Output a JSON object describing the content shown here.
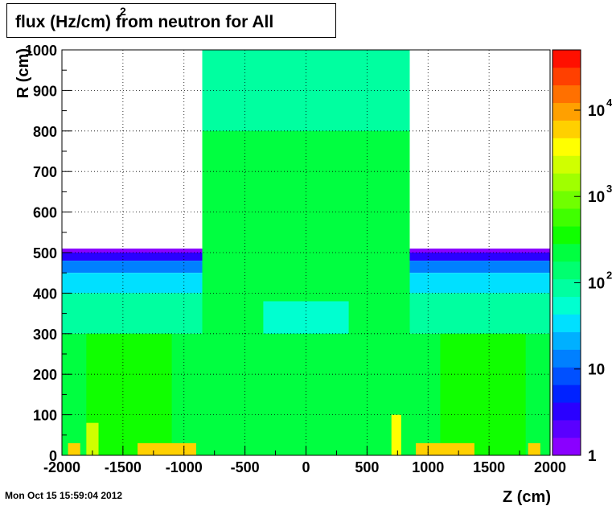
{
  "chart_data": {
    "type": "heatmap",
    "title": "flux (Hz/cm",
    "title_superscript": "2",
    "title_suffix": ") from neutron  for All",
    "xlabel": "Z (cm)",
    "ylabel": "R (cm)",
    "xlim": [
      -2000,
      2000
    ],
    "ylim": [
      0,
      1000
    ],
    "x_ticks": [
      -2000,
      -1500,
      -1000,
      -500,
      0,
      500,
      1000,
      1500,
      2000
    ],
    "x_tick_labels": [
      "-2000",
      "-1500",
      "-1000",
      "-500",
      "0",
      "500",
      "1000",
      "1500",
      "2000"
    ],
    "y_ticks": [
      0,
      100,
      200,
      300,
      400,
      500,
      600,
      700,
      800,
      900,
      1000
    ],
    "y_tick_labels": [
      "0",
      "100",
      "200",
      "300",
      "400",
      "500",
      "600",
      "700",
      "800",
      "900",
      "1000"
    ],
    "grid": true,
    "z_scale": "log",
    "zlim": [
      1,
      50000
    ],
    "colorbar": {
      "labels": [
        {
          "value": 1,
          "base": "1",
          "exp": ""
        },
        {
          "value": 10,
          "base": "10",
          "exp": ""
        },
        {
          "value": 100,
          "base": "10",
          "exp": "2"
        },
        {
          "value": 1000,
          "base": "10",
          "exp": "3"
        },
        {
          "value": 10000,
          "base": "10",
          "exp": "4"
        }
      ],
      "colors": [
        "#8a00ff",
        "#5a00ff",
        "#2a00ff",
        "#0022ff",
        "#0050ff",
        "#0080ff",
        "#00b0ff",
        "#00e0ff",
        "#00ffd0",
        "#00ffa0",
        "#00ff70",
        "#00ff40",
        "#10ff00",
        "#40ff00",
        "#70ff00",
        "#a0ff00",
        "#d0ff00",
        "#ffff00",
        "#ffd000",
        "#ffa000",
        "#ff7000",
        "#ff4000",
        "#ff1000"
      ]
    },
    "regions": [
      {
        "z": [
          -2000,
          2000
        ],
        "r": [
          500,
          510
        ],
        "value": 1.5
      },
      {
        "z": [
          -2000,
          2000
        ],
        "r": [
          480,
          500
        ],
        "value": 4
      },
      {
        "z": [
          -2000,
          2000
        ],
        "r": [
          450,
          480
        ],
        "value": 12
      },
      {
        "z": [
          -2000,
          2000
        ],
        "r": [
          400,
          450
        ],
        "value": 40
      },
      {
        "z": [
          -2000,
          2000
        ],
        "r": [
          300,
          400
        ],
        "value": 100
      },
      {
        "z": [
          -2000,
          2000
        ],
        "r": [
          0,
          300
        ],
        "value": 250
      },
      {
        "z": [
          -1800,
          -1100
        ],
        "r": [
          0,
          300
        ],
        "value": 450
      },
      {
        "z": [
          1100,
          1800
        ],
        "r": [
          0,
          300
        ],
        "value": 450
      },
      {
        "z": [
          -850,
          850
        ],
        "r": [
          0,
          1000
        ],
        "value": 180
      },
      {
        "z": [
          -850,
          850
        ],
        "r": [
          800,
          1000
        ],
        "value": 90
      },
      {
        "z": [
          -350,
          350
        ],
        "r": [
          300,
          380
        ],
        "value": 60
      },
      {
        "z": [
          -1800,
          -1700
        ],
        "r": [
          0,
          80
        ],
        "value": 2000
      },
      {
        "z": [
          -1380,
          -900
        ],
        "r": [
          0,
          30
        ],
        "value": 5000
      },
      {
        "z": [
          900,
          1380
        ],
        "r": [
          0,
          30
        ],
        "value": 5000
      },
      {
        "z": [
          700,
          780
        ],
        "r": [
          0,
          100
        ],
        "value": 3000
      },
      {
        "z": [
          1820,
          1920
        ],
        "r": [
          0,
          30
        ],
        "value": 5000
      },
      {
        "z": [
          -1950,
          -1850
        ],
        "r": [
          0,
          30
        ],
        "value": 5000
      }
    ]
  },
  "timestamp": "Mon Oct 15 15:59:04 2012"
}
